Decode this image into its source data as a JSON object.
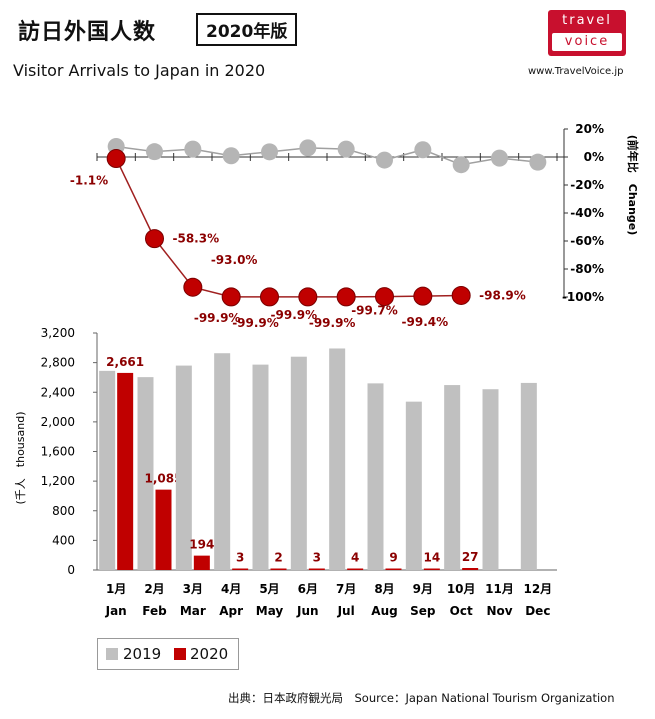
{
  "header": {
    "title": "訪日外国人数",
    "edition": "2020年版",
    "subtitle": "Visitor Arrivals to Japan in 2020",
    "logo_line1": "travel",
    "logo_line2": "voice",
    "website": "www.TravelVoice.jp"
  },
  "colors": {
    "y2019": "#c0c0c0",
    "y2020": "#c00000",
    "change2019_marker": "#b5b5b5",
    "change2020_line": "#a02020"
  },
  "chart_data": {
    "type": "bar",
    "months_jp": [
      "1月",
      "2月",
      "3月",
      "4月",
      "5月",
      "6月",
      "7月",
      "8月",
      "9月",
      "10月",
      "11月",
      "12月"
    ],
    "months_en": [
      "Jan",
      "Feb",
      "Mar",
      "Apr",
      "May",
      "Jun",
      "Jul",
      "Aug",
      "Sep",
      "Oct",
      "Nov",
      "Dec"
    ],
    "series": [
      {
        "name": "2019",
        "values": [
          2689,
          2604,
          2760,
          2927,
          2773,
          2880,
          2991,
          2520,
          2273,
          2497,
          2441,
          2526
        ]
      },
      {
        "name": "2020",
        "values": [
          2661,
          1085,
          194,
          3,
          2,
          3,
          4,
          9,
          14,
          27,
          null,
          null
        ]
      }
    ],
    "bar_labels_2020": [
      "2,661",
      "1,085",
      "194",
      "3",
      "2",
      "3",
      "4",
      "9",
      "14",
      "27"
    ],
    "ylabel": "(千人　thousand)",
    "yticks": [
      "0",
      "400",
      "800",
      "1,200",
      "1,600",
      "2,000",
      "2,400",
      "2,800",
      "3,200"
    ],
    "ylim": [
      0,
      3200
    ],
    "change_panel": {
      "type": "line",
      "ylabel": "(前年比　Change)",
      "yticks": [
        "20%",
        "0%",
        "-20%",
        "-40%",
        "-60%",
        "-80%",
        "-100%"
      ],
      "ylim": [
        -100,
        20
      ],
      "series": [
        {
          "name": "2019",
          "values": [
            7.5,
            3.8,
            5.6,
            0.9,
            3.7,
            6.5,
            5.6,
            -2.2,
            5.2,
            -5.5,
            -0.8,
            -3.7
          ]
        },
        {
          "name": "2020",
          "values": [
            -1.1,
            -58.3,
            -93.0,
            -99.9,
            -99.9,
            -99.9,
            -99.9,
            -99.7,
            -99.4,
            -98.9,
            null,
            null
          ]
        }
      ],
      "labels_2020": [
        "-1.1%",
        "-58.3%",
        "-93.0%",
        "-99.9%",
        "-99.9%",
        "-99.9%",
        "-99.9%",
        "-99.7%",
        "-99.4%",
        "-98.9%"
      ]
    }
  },
  "legend": {
    "item1": "2019",
    "item2": "2020"
  },
  "source": "出典：日本政府観光局　Source：Japan National Tourism Organization"
}
